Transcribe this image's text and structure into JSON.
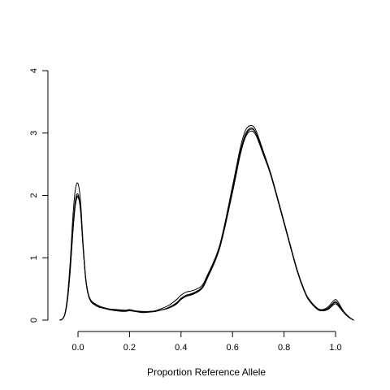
{
  "chart_data": {
    "type": "line",
    "title": "",
    "xlabel": "Proportion Reference Allele",
    "ylabel": "",
    "xlim": [
      -0.07,
      1.07
    ],
    "ylim": [
      0,
      4
    ],
    "x_ticks": [
      0.0,
      0.2,
      0.4,
      0.6,
      0.8,
      1.0
    ],
    "x_tick_labels": [
      "0.0",
      "0.2",
      "0.4",
      "0.6",
      "0.8",
      "1.0"
    ],
    "y_ticks": [
      0,
      1,
      2,
      3,
      4
    ],
    "y_tick_labels": [
      "0",
      "1",
      "2",
      "3",
      "4"
    ],
    "grid": false,
    "line_color": "#000000",
    "x": [
      -0.07,
      -0.06,
      -0.05,
      -0.04,
      -0.03,
      -0.02,
      -0.01,
      0.0,
      0.01,
      0.02,
      0.03,
      0.04,
      0.05,
      0.06,
      0.08,
      0.1,
      0.12,
      0.15,
      0.18,
      0.2,
      0.22,
      0.25,
      0.28,
      0.3,
      0.32,
      0.35,
      0.38,
      0.4,
      0.42,
      0.45,
      0.48,
      0.5,
      0.55,
      0.6,
      0.63,
      0.65,
      0.67,
      0.69,
      0.72,
      0.75,
      0.8,
      0.85,
      0.88,
      0.9,
      0.93,
      0.95,
      0.97,
      0.99,
      1.0,
      1.01,
      1.03,
      1.05,
      1.07
    ],
    "series": [
      {
        "values": [
          0.0,
          0.02,
          0.1,
          0.35,
          0.8,
          1.4,
          1.85,
          1.97,
          1.75,
          1.15,
          0.65,
          0.4,
          0.3,
          0.26,
          0.22,
          0.19,
          0.17,
          0.15,
          0.15,
          0.16,
          0.14,
          0.13,
          0.13,
          0.14,
          0.16,
          0.19,
          0.25,
          0.33,
          0.38,
          0.42,
          0.5,
          0.65,
          1.15,
          2.05,
          2.65,
          2.93,
          3.03,
          2.97,
          2.65,
          2.3,
          1.55,
          0.8,
          0.45,
          0.3,
          0.18,
          0.15,
          0.17,
          0.24,
          0.26,
          0.23,
          0.13,
          0.05,
          0.0
        ]
      },
      {
        "values": [
          0.0,
          0.02,
          0.11,
          0.38,
          0.85,
          1.48,
          1.92,
          2.02,
          1.78,
          1.17,
          0.66,
          0.41,
          0.31,
          0.27,
          0.22,
          0.2,
          0.18,
          0.16,
          0.15,
          0.17,
          0.15,
          0.13,
          0.14,
          0.14,
          0.16,
          0.2,
          0.27,
          0.35,
          0.4,
          0.44,
          0.52,
          0.68,
          1.18,
          2.1,
          2.7,
          2.98,
          3.08,
          3.01,
          2.68,
          2.32,
          1.57,
          0.81,
          0.46,
          0.31,
          0.18,
          0.16,
          0.19,
          0.27,
          0.3,
          0.26,
          0.14,
          0.05,
          0.0
        ]
      },
      {
        "values": [
          0.0,
          0.02,
          0.12,
          0.42,
          0.95,
          1.65,
          2.1,
          2.19,
          1.9,
          1.22,
          0.68,
          0.42,
          0.32,
          0.28,
          0.23,
          0.2,
          0.18,
          0.17,
          0.16,
          0.16,
          0.15,
          0.14,
          0.14,
          0.15,
          0.18,
          0.23,
          0.32,
          0.4,
          0.45,
          0.48,
          0.55,
          0.7,
          1.2,
          2.15,
          2.76,
          3.04,
          3.12,
          3.05,
          2.7,
          2.33,
          1.58,
          0.82,
          0.47,
          0.32,
          0.19,
          0.17,
          0.21,
          0.3,
          0.33,
          0.29,
          0.15,
          0.06,
          0.0
        ]
      },
      {
        "values": [
          0.0,
          0.02,
          0.11,
          0.36,
          0.82,
          1.43,
          1.88,
          1.99,
          1.76,
          1.16,
          0.65,
          0.4,
          0.3,
          0.26,
          0.21,
          0.19,
          0.17,
          0.15,
          0.14,
          0.15,
          0.14,
          0.12,
          0.13,
          0.14,
          0.16,
          0.19,
          0.26,
          0.34,
          0.39,
          0.43,
          0.51,
          0.66,
          1.16,
          2.07,
          2.68,
          2.95,
          3.06,
          3.0,
          2.66,
          2.31,
          1.56,
          0.8,
          0.45,
          0.3,
          0.17,
          0.15,
          0.18,
          0.26,
          0.28,
          0.25,
          0.13,
          0.05,
          0.0
        ]
      }
    ]
  }
}
